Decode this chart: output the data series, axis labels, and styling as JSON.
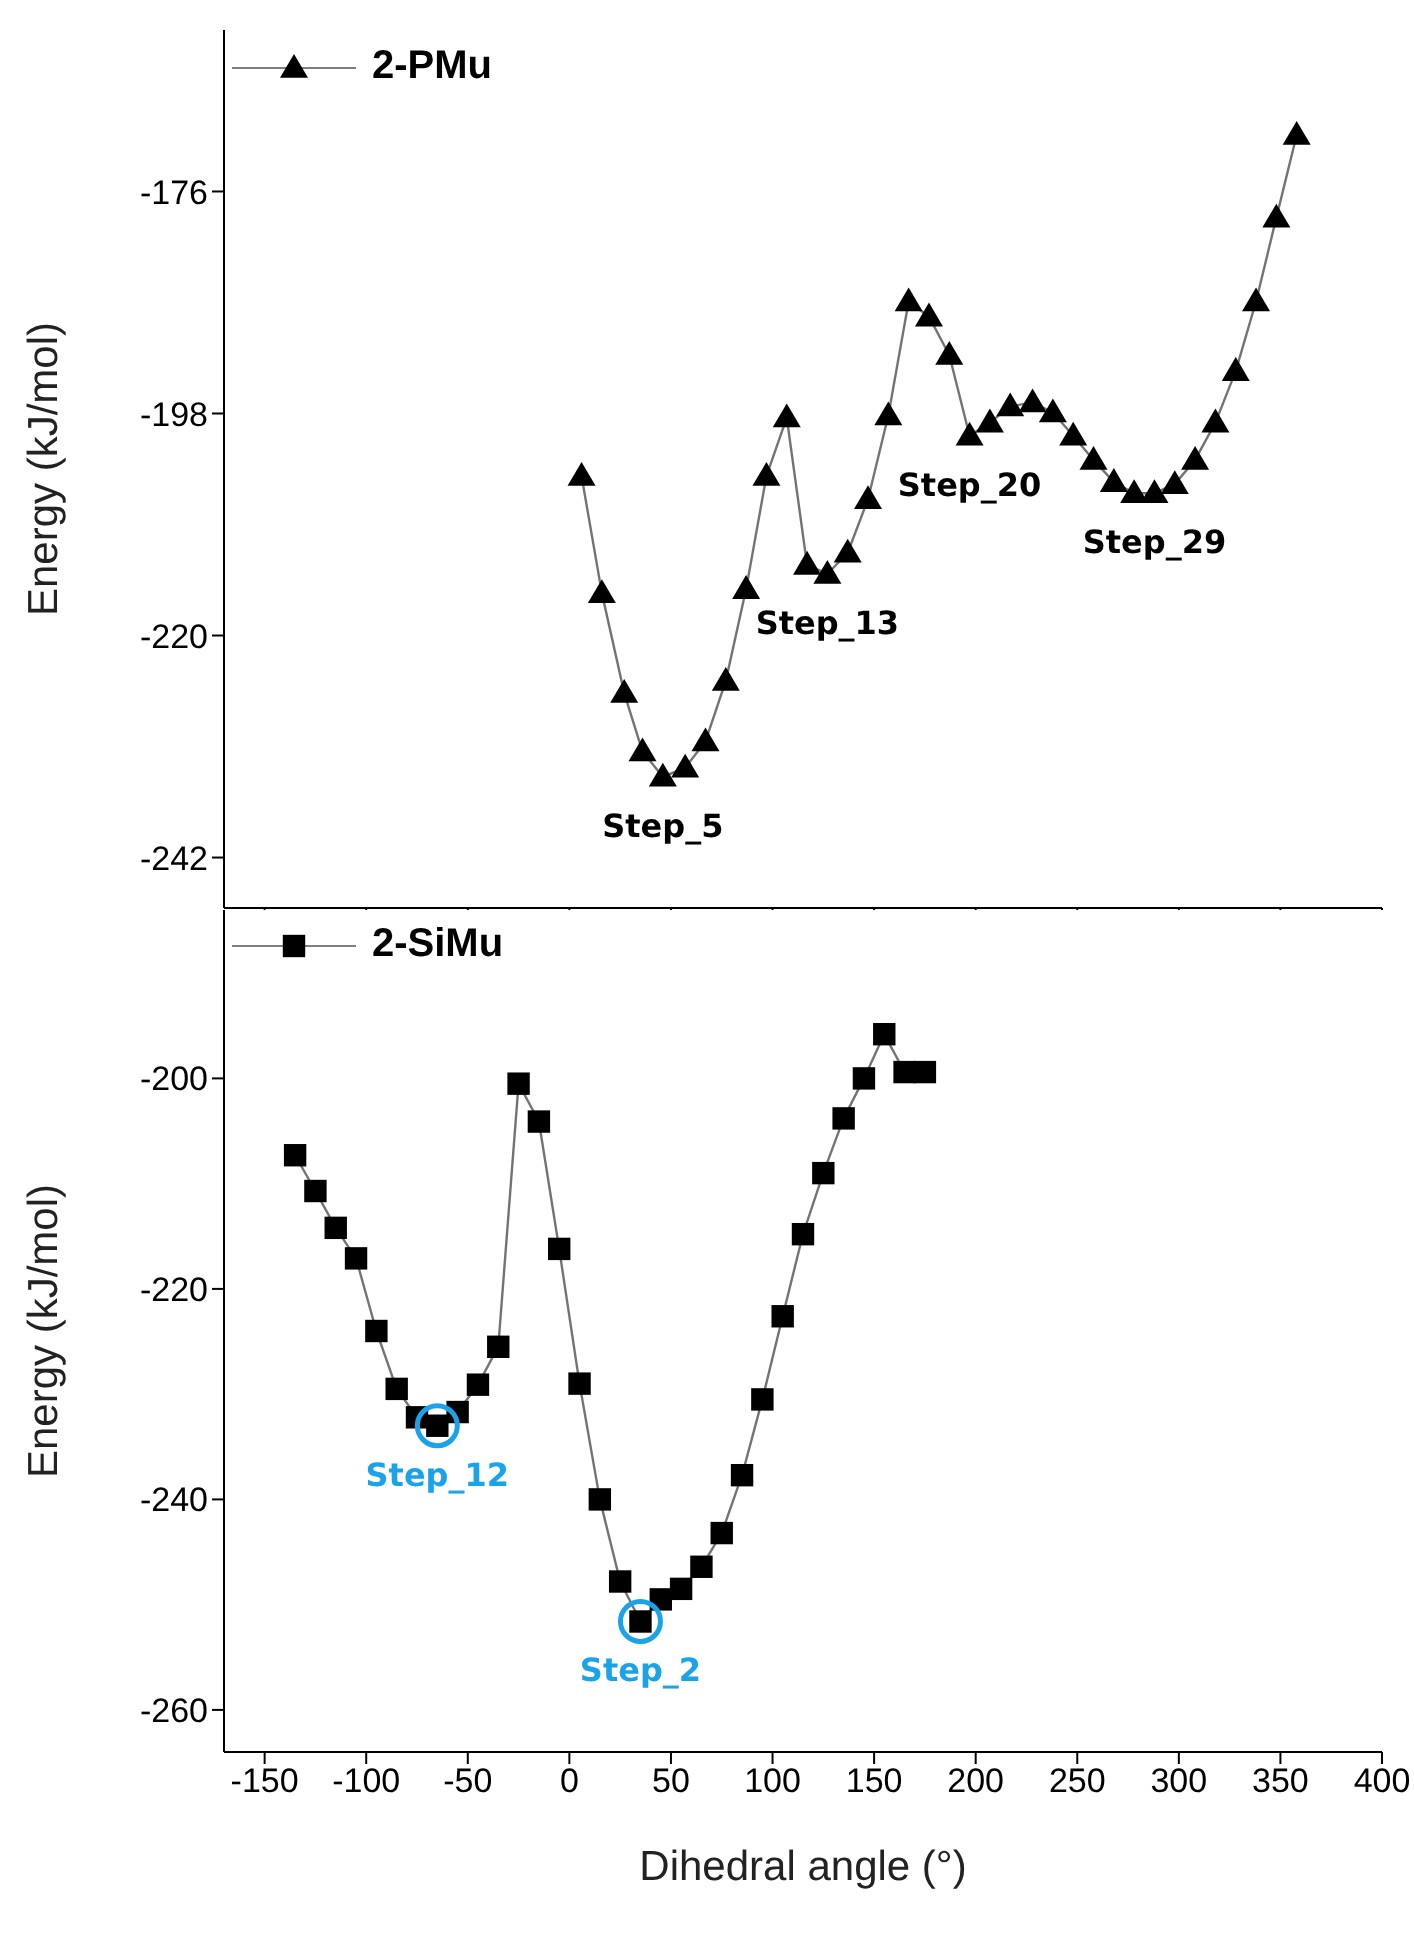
{
  "chart_data": [
    {
      "type": "line",
      "ylabel": "Energy (kJ/mol)",
      "xlim": [
        -170,
        400
      ],
      "xticks": [
        -150,
        -100,
        -50,
        0,
        50,
        100,
        150,
        200,
        250,
        300,
        350,
        400
      ],
      "ylim": [
        -247,
        -160
      ],
      "yticks": [
        -176,
        -198,
        -220,
        -242
      ],
      "tick_labels": "y",
      "legend": "top left",
      "marker": "triangle",
      "line_style": "solid",
      "series": [
        {
          "name": "2-PMu",
          "color": "#000000",
          "x": [
            6,
            16,
            27,
            36,
            46,
            57,
            67,
            77,
            87,
            97,
            107,
            117,
            127,
            137,
            147,
            157,
            167,
            177,
            187,
            197,
            207,
            217,
            228,
            238,
            248,
            258,
            268,
            278,
            288,
            298,
            308,
            318,
            328,
            338,
            348,
            358
          ],
          "values": [
            -204.2,
            -215.8,
            -225.7,
            -231.5,
            -234,
            -233.1,
            -230.5,
            -224.5,
            -215.4,
            -204.2,
            -198.4,
            -213,
            -213.9,
            -211.8,
            -206.5,
            -198.2,
            -186.9,
            -188.4,
            -192.2,
            -200.2,
            -198.9,
            -197.3,
            -196.9,
            -197.9,
            -200.2,
            -202.6,
            -204.8,
            -205.9,
            -205.9,
            -205,
            -202.6,
            -198.9,
            -193.8,
            -186.9,
            -178.6,
            -170.4
          ]
        }
      ],
      "annotations": [
        {
          "text": "Step_5",
          "x": 46,
          "y": -234
        },
        {
          "text": "Step_13",
          "x": 127,
          "y": -213.9
        },
        {
          "text": "Step_20",
          "x": 197,
          "y": -200.2
        },
        {
          "text": "Step_29",
          "x": 288,
          "y": -205.9
        }
      ]
    },
    {
      "type": "line",
      "xlabel": "Dihedral angle (°)",
      "ylabel": "Energy (kJ/mol)",
      "xlim": [
        -170,
        400
      ],
      "xticks": [
        -150,
        -100,
        -50,
        0,
        50,
        100,
        150,
        200,
        250,
        300,
        350,
        400
      ],
      "ylim": [
        -264,
        -184
      ],
      "yticks": [
        -200,
        -220,
        -240,
        -260
      ],
      "legend": "top left",
      "marker": "square",
      "line_style": "solid",
      "series": [
        {
          "name": "2-SiMu",
          "color": "#000000",
          "x": [
            -135,
            -125,
            -115,
            -105,
            -95,
            -85,
            -75,
            -65,
            -55,
            -45,
            -35,
            -25,
            -15,
            -5,
            5,
            15,
            25,
            35,
            45,
            55,
            65,
            75,
            85,
            95,
            105,
            115,
            125,
            135,
            145,
            155,
            165,
            175
          ],
          "values": [
            -207.3,
            -210.7,
            -214.2,
            -217.1,
            -224,
            -229.5,
            -232.2,
            -233,
            -231.7,
            -229.1,
            -225.5,
            -200.5,
            -204.1,
            -216.2,
            -229,
            -240,
            -247.8,
            -251.6,
            -249.5,
            -248.5,
            -246.4,
            -243.2,
            -237.7,
            -230.5,
            -222.6,
            -214.8,
            -209,
            -203.8,
            -200,
            -195.8,
            -199.4,
            -199.4
          ]
        }
      ],
      "annotations": [
        {
          "text": "Step_12",
          "x": -65,
          "y": -233
        },
        {
          "text": "Step_2",
          "x": 35,
          "y": -251.6
        }
      ]
    }
  ]
}
